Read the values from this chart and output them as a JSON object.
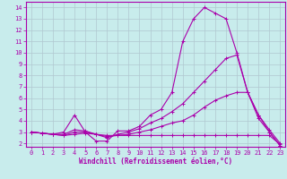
{
  "xlabel": "Windchill (Refroidissement éolien,°C)",
  "bg_color": "#c8ecec",
  "line_color": "#aa00aa",
  "grid_color": "#b0c8d0",
  "xlim": [
    -0.5,
    23.5
  ],
  "ylim": [
    1.7,
    14.5
  ],
  "xticks": [
    0,
    1,
    2,
    3,
    4,
    5,
    6,
    7,
    8,
    9,
    10,
    11,
    12,
    13,
    14,
    15,
    16,
    17,
    18,
    19,
    20,
    21,
    22,
    23
  ],
  "yticks": [
    2,
    3,
    4,
    5,
    6,
    7,
    8,
    9,
    10,
    11,
    12,
    13,
    14
  ],
  "series": [
    {
      "x": [
        0,
        1,
        2,
        3,
        4,
        5,
        6,
        7,
        8,
        9,
        10,
        11,
        12,
        13,
        14,
        15,
        16,
        17,
        18,
        19,
        20,
        21,
        22,
        23
      ],
      "y": [
        3.0,
        2.9,
        2.8,
        3.0,
        4.5,
        3.0,
        2.2,
        2.2,
        3.1,
        3.1,
        3.5,
        4.5,
        5.0,
        6.5,
        11.0,
        13.0,
        14.0,
        13.5,
        13.0,
        10.0,
        6.5,
        4.5,
        3.0,
        1.8
      ]
    },
    {
      "x": [
        0,
        1,
        2,
        3,
        4,
        5,
        6,
        7,
        8,
        9,
        10,
        11,
        12,
        13,
        14,
        15,
        16,
        17,
        18,
        19,
        20,
        21,
        22,
        23
      ],
      "y": [
        3.0,
        2.9,
        2.8,
        2.8,
        3.2,
        3.1,
        2.8,
        2.5,
        2.8,
        3.0,
        3.3,
        3.8,
        4.2,
        4.8,
        5.5,
        6.5,
        7.5,
        8.5,
        9.5,
        9.8,
        6.5,
        4.2,
        3.0,
        1.8
      ]
    },
    {
      "x": [
        0,
        1,
        2,
        3,
        4,
        5,
        6,
        7,
        8,
        9,
        10,
        11,
        12,
        13,
        14,
        15,
        16,
        17,
        18,
        19,
        20,
        21,
        22,
        23
      ],
      "y": [
        3.0,
        2.9,
        2.8,
        2.7,
        3.0,
        3.0,
        2.8,
        2.6,
        2.7,
        2.8,
        3.0,
        3.2,
        3.5,
        3.8,
        4.0,
        4.5,
        5.2,
        5.8,
        6.2,
        6.5,
        6.5,
        4.5,
        3.2,
        2.0
      ]
    },
    {
      "x": [
        0,
        1,
        2,
        3,
        4,
        5,
        6,
        7,
        8,
        9,
        10,
        11,
        12,
        13,
        14,
        15,
        16,
        17,
        18,
        19,
        20,
        21,
        22,
        23
      ],
      "y": [
        3.0,
        2.9,
        2.8,
        2.7,
        2.8,
        2.9,
        2.8,
        2.7,
        2.7,
        2.7,
        2.7,
        2.7,
        2.7,
        2.7,
        2.7,
        2.7,
        2.7,
        2.7,
        2.7,
        2.7,
        2.7,
        2.7,
        2.7,
        1.9
      ]
    }
  ]
}
